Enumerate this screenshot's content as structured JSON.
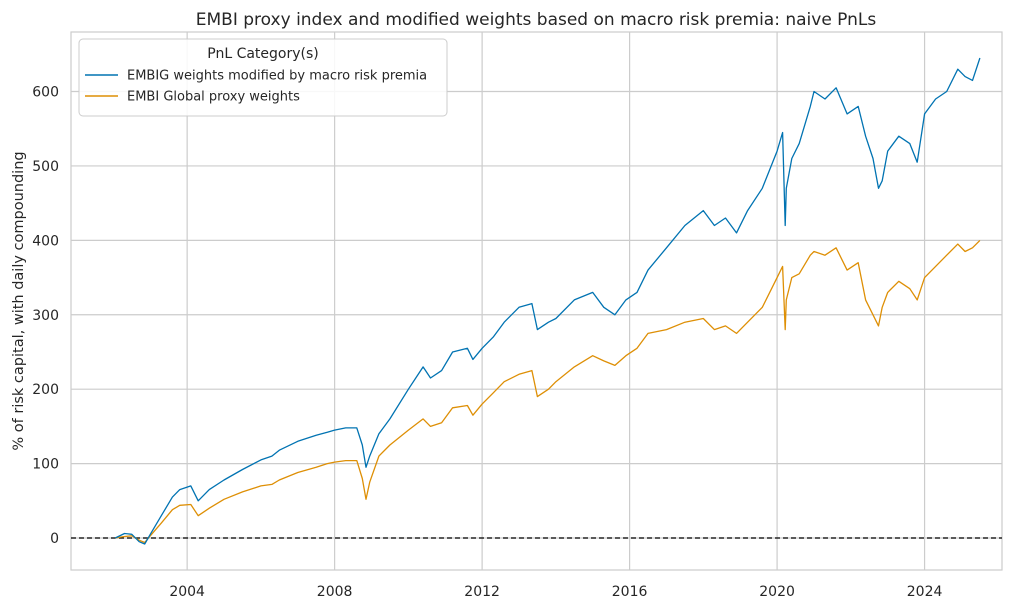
{
  "chart_data": {
    "type": "line",
    "title": "EMBI proxy index and modified weights based on macro risk premia: naive PnLs",
    "xlabel": "",
    "ylabel": "% of risk capital, with daily compounding",
    "xlim": [
      2000.85,
      2026.1
    ],
    "ylim": [
      -43,
      680
    ],
    "x_ticks": [
      2004,
      2008,
      2012,
      2016,
      2020,
      2024
    ],
    "x_tick_labels": [
      "2004",
      "2008",
      "2012",
      "2016",
      "2020",
      "2024"
    ],
    "y_ticks": [
      0,
      100,
      200,
      300,
      400,
      500,
      600
    ],
    "y_tick_labels": [
      "0",
      "100",
      "200",
      "300",
      "400",
      "500",
      "600"
    ],
    "grid": true,
    "reference_line": {
      "y": 0,
      "style": "dashed",
      "color": "#000000"
    },
    "legend": {
      "title": "PnL Category(s)",
      "placement": "top-left",
      "entries": [
        "EMBIG weights modified by macro risk premia",
        "EMBI Global proxy weights"
      ]
    },
    "series": [
      {
        "name": "EMBIG weights modified by macro risk premia",
        "color": "#0173b2",
        "x": [
          2002.05,
          2002.3,
          2002.5,
          2002.7,
          2002.85,
          2003.0,
          2003.3,
          2003.6,
          2003.8,
          2004.1,
          2004.3,
          2004.6,
          2005.0,
          2005.5,
          2006.0,
          2006.3,
          2006.5,
          2007.0,
          2007.5,
          2007.8,
          2008.0,
          2008.3,
          2008.6,
          2008.75,
          2008.85,
          2008.95,
          2009.2,
          2009.5,
          2010.0,
          2010.4,
          2010.6,
          2010.9,
          2011.2,
          2011.6,
          2011.75,
          2012.0,
          2012.3,
          2012.6,
          2013.0,
          2013.35,
          2013.5,
          2013.8,
          2014.0,
          2014.5,
          2015.0,
          2015.3,
          2015.6,
          2015.9,
          2016.2,
          2016.5,
          2017.0,
          2017.5,
          2018.0,
          2018.3,
          2018.6,
          2018.9,
          2019.2,
          2019.6,
          2020.0,
          2020.15,
          2020.22,
          2020.25,
          2020.4,
          2020.6,
          2020.9,
          2021.0,
          2021.3,
          2021.6,
          2021.9,
          2022.2,
          2022.4,
          2022.6,
          2022.75,
          2022.85,
          2023.0,
          2023.3,
          2023.6,
          2023.8,
          2024.0,
          2024.3,
          2024.6,
          2024.9,
          2025.1,
          2025.3,
          2025.5
        ],
        "values": [
          0,
          6,
          5,
          -5,
          -8,
          5,
          30,
          55,
          65,
          70,
          50,
          65,
          78,
          92,
          105,
          110,
          118,
          130,
          138,
          142,
          145,
          148,
          148,
          125,
          95,
          110,
          140,
          160,
          200,
          230,
          215,
          225,
          250,
          255,
          240,
          255,
          270,
          290,
          310,
          315,
          280,
          290,
          295,
          320,
          330,
          310,
          300,
          320,
          330,
          360,
          390,
          420,
          440,
          420,
          430,
          410,
          440,
          470,
          520,
          545,
          420,
          470,
          510,
          530,
          580,
          600,
          590,
          605,
          570,
          580,
          540,
          510,
          470,
          480,
          520,
          540,
          530,
          505,
          570,
          590,
          600,
          630,
          620,
          615,
          645
        ]
      },
      {
        "name": "EMBI Global proxy weights",
        "color": "#de8f05",
        "x": [
          2002.05,
          2002.3,
          2002.5,
          2002.7,
          2002.85,
          2003.0,
          2003.3,
          2003.6,
          2003.8,
          2004.1,
          2004.3,
          2004.6,
          2005.0,
          2005.5,
          2006.0,
          2006.3,
          2006.5,
          2007.0,
          2007.5,
          2007.8,
          2008.0,
          2008.3,
          2008.6,
          2008.75,
          2008.85,
          2008.95,
          2009.2,
          2009.5,
          2010.0,
          2010.4,
          2010.6,
          2010.9,
          2011.2,
          2011.6,
          2011.75,
          2012.0,
          2012.3,
          2012.6,
          2013.0,
          2013.35,
          2013.5,
          2013.8,
          2014.0,
          2014.5,
          2015.0,
          2015.3,
          2015.6,
          2015.9,
          2016.2,
          2016.5,
          2017.0,
          2017.5,
          2018.0,
          2018.3,
          2018.6,
          2018.9,
          2019.2,
          2019.6,
          2020.0,
          2020.15,
          2020.22,
          2020.25,
          2020.4,
          2020.6,
          2020.9,
          2021.0,
          2021.3,
          2021.6,
          2021.9,
          2022.2,
          2022.4,
          2022.6,
          2022.75,
          2022.85,
          2023.0,
          2023.3,
          2023.6,
          2023.8,
          2024.0,
          2024.3,
          2024.6,
          2024.9,
          2025.1,
          2025.3,
          2025.5
        ],
        "values": [
          0,
          2,
          3,
          -3,
          -6,
          3,
          20,
          38,
          44,
          45,
          30,
          40,
          52,
          62,
          70,
          72,
          78,
          88,
          95,
          100,
          102,
          104,
          104,
          80,
          52,
          75,
          110,
          125,
          145,
          160,
          150,
          155,
          175,
          178,
          165,
          180,
          195,
          210,
          220,
          225,
          190,
          200,
          210,
          230,
          245,
          238,
          232,
          245,
          255,
          275,
          280,
          290,
          295,
          280,
          285,
          275,
          290,
          310,
          350,
          365,
          280,
          320,
          350,
          355,
          380,
          385,
          380,
          390,
          360,
          370,
          320,
          300,
          285,
          310,
          330,
          345,
          335,
          320,
          350,
          365,
          380,
          395,
          385,
          390,
          400
        ]
      }
    ]
  }
}
